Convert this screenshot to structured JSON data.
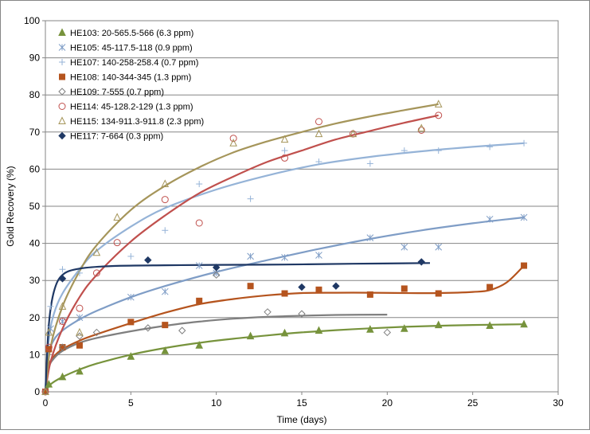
{
  "chart_data": {
    "type": "scatter",
    "title": "",
    "xlabel": "Time (days)",
    "ylabel": "Gold Recovery (%)",
    "xlim": [
      0,
      30
    ],
    "ylim": [
      0,
      100
    ],
    "xticks": [
      0,
      5,
      10,
      15,
      20,
      25,
      30
    ],
    "yticks": [
      0,
      10,
      20,
      30,
      40,
      50,
      60,
      70,
      80,
      90,
      100
    ],
    "grid": "horizontal",
    "legend_position": "top-left",
    "series": [
      {
        "name": "HE103: 20-565.5-566 (6.3 ppm)",
        "color": "#77933C",
        "marker": "triangle-filled",
        "points": [
          [
            0,
            0
          ],
          [
            0.2,
            2
          ],
          [
            1,
            4
          ],
          [
            2,
            5.5
          ],
          [
            5,
            9.5
          ],
          [
            7,
            11
          ],
          [
            9,
            12.5
          ],
          [
            12,
            15
          ],
          [
            14,
            15.8
          ],
          [
            16,
            16.5
          ],
          [
            19,
            16.8
          ],
          [
            21,
            17
          ],
          [
            23,
            18
          ],
          [
            26,
            17.8
          ],
          [
            28,
            18.2
          ]
        ],
        "fit": [
          [
            0,
            0
          ],
          [
            0.3,
            2
          ],
          [
            1,
            4
          ],
          [
            2,
            6
          ],
          [
            3,
            7.6
          ],
          [
            5,
            10
          ],
          [
            7,
            11.8
          ],
          [
            9,
            13.2
          ],
          [
            11,
            14.3
          ],
          [
            13,
            15.2
          ],
          [
            15,
            16
          ],
          [
            17,
            16.6
          ],
          [
            19,
            17.1
          ],
          [
            21,
            17.5
          ],
          [
            23,
            17.8
          ],
          [
            25,
            18
          ],
          [
            28,
            18.2
          ]
        ]
      },
      {
        "name": "HE105: 45-117.5-118 (0.9 ppm)",
        "color": "#7F9DC6",
        "marker": "asterisk",
        "points": [
          [
            0,
            0
          ],
          [
            0.3,
            17
          ],
          [
            1,
            19
          ],
          [
            2,
            20
          ],
          [
            5,
            25.5
          ],
          [
            7,
            27
          ],
          [
            9,
            34
          ],
          [
            10,
            32
          ],
          [
            12,
            36.5
          ],
          [
            14,
            36.2
          ],
          [
            16,
            36.8
          ],
          [
            19,
            41.5
          ],
          [
            21,
            39
          ],
          [
            23,
            39
          ],
          [
            26,
            46.5
          ],
          [
            28,
            47
          ]
        ],
        "fit": [
          [
            0,
            0
          ],
          [
            0.2,
            10
          ],
          [
            0.5,
            14
          ],
          [
            1,
            16.5
          ],
          [
            2,
            19.5
          ],
          [
            3,
            21.8
          ],
          [
            5,
            25.5
          ],
          [
            7,
            28.5
          ],
          [
            10,
            32.3
          ],
          [
            13,
            35.5
          ],
          [
            16,
            38.5
          ],
          [
            19,
            41.2
          ],
          [
            22,
            43.5
          ],
          [
            25,
            45.4
          ],
          [
            28,
            47
          ]
        ]
      },
      {
        "name": "HE107: 140-258-258.4 (0.7 ppm)",
        "color": "#95B3D7",
        "marker": "plus",
        "points": [
          [
            0,
            0
          ],
          [
            0.3,
            23
          ],
          [
            1,
            33
          ],
          [
            2,
            32
          ],
          [
            5,
            36.5
          ],
          [
            7,
            43.5
          ],
          [
            9,
            56
          ],
          [
            12,
            52
          ],
          [
            14,
            65
          ],
          [
            16,
            62
          ],
          [
            19,
            61.5
          ],
          [
            21,
            65
          ],
          [
            23,
            65
          ],
          [
            26,
            66
          ],
          [
            28,
            67
          ]
        ],
        "fit": [
          [
            0,
            0
          ],
          [
            0.2,
            14
          ],
          [
            0.5,
            21
          ],
          [
            1,
            26.5
          ],
          [
            2,
            33
          ],
          [
            3,
            38
          ],
          [
            5,
            44.5
          ],
          [
            7,
            49.5
          ],
          [
            10,
            54.5
          ],
          [
            13,
            58.3
          ],
          [
            16,
            61.3
          ],
          [
            19,
            63.3
          ],
          [
            22,
            64.8
          ],
          [
            25,
            66
          ],
          [
            28,
            67
          ]
        ]
      },
      {
        "name": "HE108: 140-344-345 (1.3 ppm)",
        "color": "#B5541E",
        "marker": "square-filled",
        "points": [
          [
            0,
            0
          ],
          [
            0.2,
            11.5
          ],
          [
            1,
            12
          ],
          [
            2,
            12.5
          ],
          [
            5,
            18.8
          ],
          [
            7,
            18
          ],
          [
            9,
            24.5
          ],
          [
            12,
            28.5
          ],
          [
            14,
            26.5
          ],
          [
            16,
            27.5
          ],
          [
            19,
            26.2
          ],
          [
            21,
            27.8
          ],
          [
            23,
            26.5
          ],
          [
            26,
            28.2
          ],
          [
            28,
            34
          ]
        ],
        "fit": [
          [
            0,
            0
          ],
          [
            0.2,
            7
          ],
          [
            0.5,
            9.5
          ],
          [
            1,
            11.5
          ],
          [
            2,
            13.8
          ],
          [
            3,
            15.5
          ],
          [
            5,
            18.5
          ],
          [
            7,
            21.3
          ],
          [
            9,
            23.6
          ],
          [
            11,
            25
          ],
          [
            13,
            26
          ],
          [
            15,
            26.6
          ],
          [
            17,
            26.7
          ],
          [
            19,
            26.7
          ],
          [
            21,
            26.6
          ],
          [
            23,
            26.6
          ],
          [
            25,
            26.9
          ],
          [
            26,
            27.4
          ],
          [
            27,
            29.5
          ],
          [
            28,
            34
          ]
        ]
      },
      {
        "name": "HE109: 7-555 (0.7 ppm)",
        "color": "#7F7F7F",
        "marker": "diamond-open",
        "points": [
          [
            0,
            0
          ],
          [
            1,
            12
          ],
          [
            2,
            15
          ],
          [
            3,
            16
          ],
          [
            6,
            17.2
          ],
          [
            8,
            16.5
          ],
          [
            10,
            31.5
          ],
          [
            13,
            21.5
          ],
          [
            15,
            21
          ],
          [
            20,
            16
          ]
        ],
        "fit": [
          [
            0,
            0
          ],
          [
            0.2,
            6.5
          ],
          [
            0.5,
            9
          ],
          [
            1,
            11
          ],
          [
            2,
            13.2
          ],
          [
            3,
            14.5
          ],
          [
            5,
            16.3
          ],
          [
            7,
            17.8
          ],
          [
            9,
            18.9
          ],
          [
            11,
            19.7
          ],
          [
            13,
            20.2
          ],
          [
            15,
            20.5
          ],
          [
            17,
            20.7
          ],
          [
            20,
            20.8
          ]
        ]
      },
      {
        "name": "HE114: 45-128.2-129 (1.3 ppm)",
        "color": "#C0504D",
        "marker": "circle-open",
        "points": [
          [
            0,
            0
          ],
          [
            0.2,
            12
          ],
          [
            1,
            19
          ],
          [
            2,
            22.5
          ],
          [
            3,
            32
          ],
          [
            4.2,
            40.2
          ],
          [
            7,
            51.8
          ],
          [
            9,
            45.5
          ],
          [
            11,
            68.3
          ],
          [
            14,
            63
          ],
          [
            16,
            72.8
          ],
          [
            18,
            69.5
          ],
          [
            22,
            70.5
          ],
          [
            23,
            74.5
          ]
        ],
        "fit": [
          [
            0,
            0
          ],
          [
            0.3,
            8
          ],
          [
            1,
            17
          ],
          [
            2,
            25.5
          ],
          [
            3,
            31.5
          ],
          [
            5,
            40.5
          ],
          [
            7,
            47.5
          ],
          [
            9,
            53.5
          ],
          [
            11,
            58
          ],
          [
            13,
            62
          ],
          [
            15,
            65
          ],
          [
            17,
            68
          ],
          [
            19,
            70.3
          ],
          [
            21,
            72.5
          ],
          [
            23,
            74.5
          ]
        ]
      },
      {
        "name": "HE115: 134-911.3-911.8 (2.3 ppm)",
        "color": "#A5955A",
        "marker": "triangle-open",
        "points": [
          [
            0,
            0
          ],
          [
            0.2,
            16
          ],
          [
            1,
            23
          ],
          [
            2,
            16
          ],
          [
            3,
            37.5
          ],
          [
            4.2,
            47
          ],
          [
            7,
            56
          ],
          [
            11,
            67
          ],
          [
            14,
            68
          ],
          [
            16,
            69.5
          ],
          [
            18,
            69.5
          ],
          [
            22,
            71
          ],
          [
            23,
            77.5
          ]
        ],
        "fit": [
          [
            0,
            0
          ],
          [
            0.3,
            12
          ],
          [
            1,
            23
          ],
          [
            2,
            32.5
          ],
          [
            3,
            39.5
          ],
          [
            5,
            49
          ],
          [
            7,
            55.5
          ],
          [
            9,
            60.5
          ],
          [
            11,
            64.5
          ],
          [
            13,
            67.5
          ],
          [
            15,
            70
          ],
          [
            17,
            72.3
          ],
          [
            19,
            74.2
          ],
          [
            21,
            75.9
          ],
          [
            23,
            77.5
          ]
        ]
      },
      {
        "name": "HE117: 7-664 (0.3 ppm)",
        "color": "#1F3864",
        "marker": "diamond-filled",
        "points": [
          [
            1,
            30.5
          ],
          [
            6,
            35.5
          ],
          [
            10,
            33.5
          ],
          [
            15,
            28.2
          ],
          [
            17,
            28.5
          ],
          [
            22,
            35
          ]
        ],
        "fit": [
          [
            0,
            0
          ],
          [
            0.2,
            18
          ],
          [
            0.5,
            27
          ],
          [
            1,
            31.5
          ],
          [
            2,
            33.2
          ],
          [
            4,
            33.9
          ],
          [
            7,
            34.1
          ],
          [
            10,
            34.2
          ],
          [
            14,
            34.3
          ],
          [
            18,
            34.5
          ],
          [
            22.5,
            34.7
          ]
        ]
      }
    ]
  }
}
